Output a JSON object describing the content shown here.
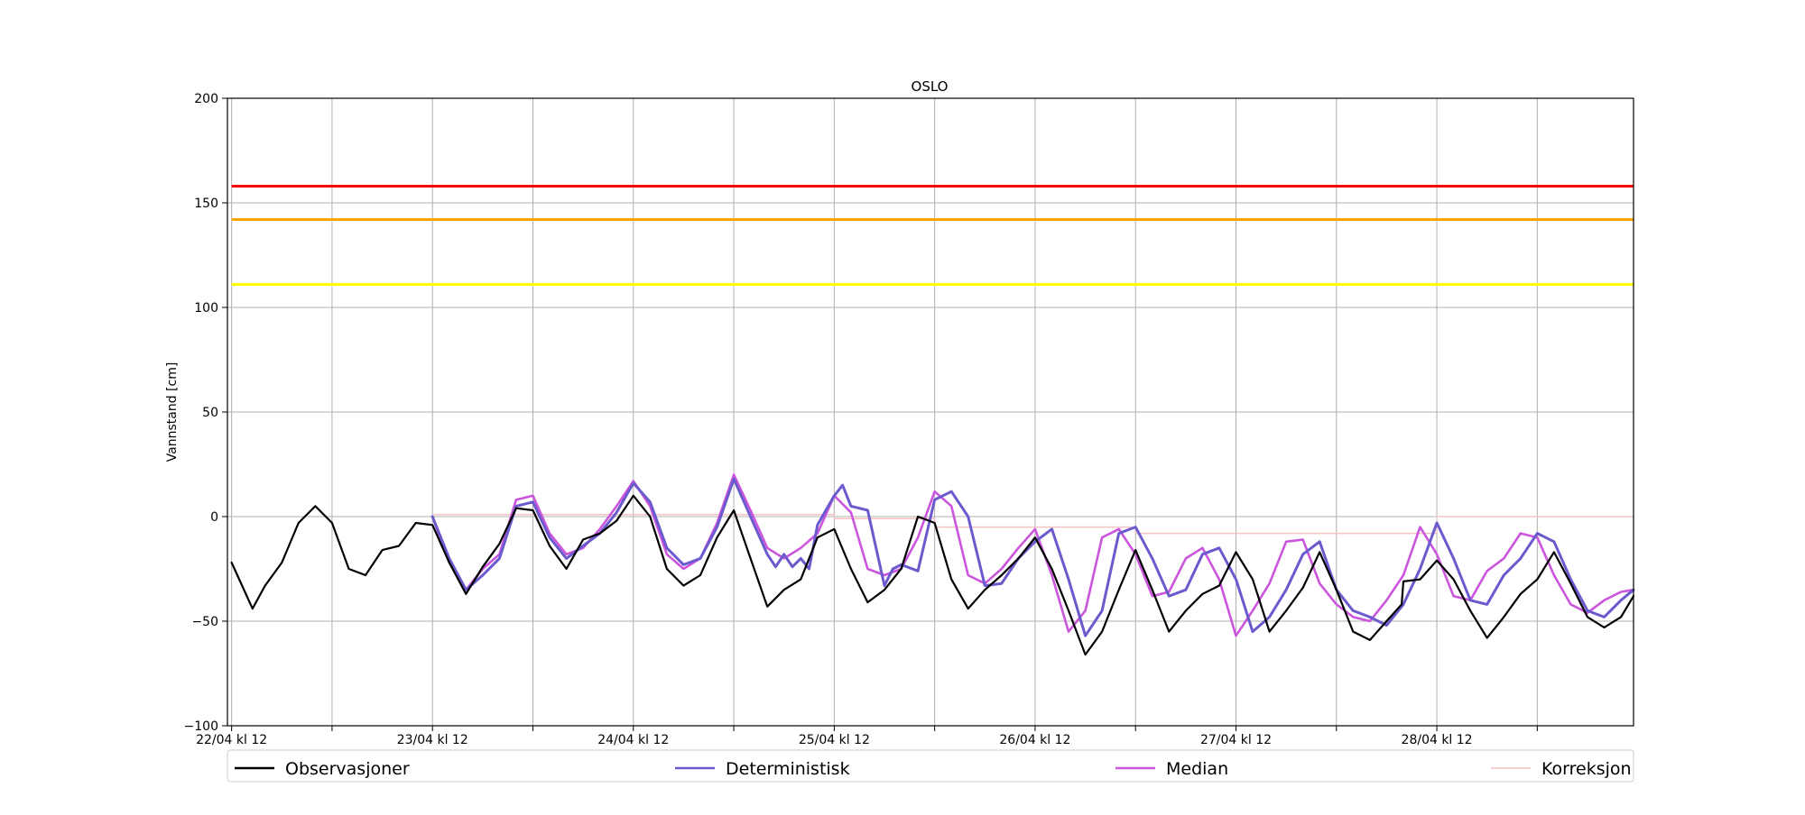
{
  "chart_data": {
    "type": "line",
    "title": "OSLO",
    "xlabel": "",
    "ylabel": "Vannstand [cm]",
    "ylim": [
      -100,
      200
    ],
    "yticks": [
      -100,
      -50,
      0,
      50,
      100,
      150,
      200
    ],
    "x_unit": "hours since 22/04 kl 12",
    "xlim": [
      -0.5,
      167.5
    ],
    "xticks": [
      0,
      12,
      24,
      36,
      48,
      60,
      72,
      84,
      96,
      108,
      120,
      132,
      144,
      156
    ],
    "xtick_labels": [
      "22/04 kl 12",
      "",
      "23/04 kl 12",
      "",
      "24/04 kl 12",
      "",
      "25/04 kl 12",
      "",
      "26/04 kl 12",
      "",
      "27/04 kl 12",
      "",
      "28/04 kl 12",
      ""
    ],
    "grid": true,
    "legend_position": "below plot, spanning full width",
    "thresholds": [
      {
        "value": 158,
        "color": "#ff0000"
      },
      {
        "value": 142,
        "color": "#ffa500"
      },
      {
        "value": 111,
        "color": "#ffff00"
      }
    ],
    "series": [
      {
        "name": "Observasjoner",
        "color": "#000000",
        "x": [
          0,
          2.5,
          4,
          6,
          8,
          10,
          12,
          14,
          16,
          18,
          20,
          22,
          24,
          26,
          28,
          30,
          32,
          34,
          36,
          38,
          40,
          42,
          44,
          46,
          48,
          50,
          52,
          54,
          56,
          58,
          60,
          62,
          64,
          66,
          68,
          70,
          72,
          74,
          76,
          78,
          80,
          82,
          84,
          86,
          88,
          90,
          92,
          94,
          96,
          98,
          100,
          102,
          104,
          106,
          108,
          110,
          112,
          114,
          116,
          118,
          120,
          122,
          124,
          126,
          128,
          130,
          132,
          134,
          136,
          138,
          139.8,
          140,
          142,
          144,
          146,
          148,
          150,
          152,
          154,
          156,
          158,
          160,
          162,
          164,
          166,
          167.5
        ],
        "y": [
          -22,
          -44,
          -33,
          -22,
          -3,
          5,
          -3,
          -25,
          -28,
          -16,
          -14,
          -3,
          -4,
          -22,
          -37,
          -24,
          -13,
          4,
          3,
          -14,
          -25,
          -11,
          -8,
          -2,
          10,
          0,
          -25,
          -33,
          -28,
          -10,
          3,
          -20,
          -43,
          -35,
          -30,
          -10,
          -6,
          -25,
          -41,
          -35,
          -25,
          0,
          -3,
          -30,
          -44,
          -35,
          -28,
          -20,
          -10,
          -25,
          -45,
          -66,
          -55,
          -35,
          -16,
          -35,
          -55,
          -45,
          -37,
          -33,
          -17,
          -30,
          -55,
          -45,
          -34,
          -17,
          -35,
          -55,
          -59,
          -50,
          -42,
          -31,
          -30,
          -21,
          -30,
          -45,
          -58,
          -48,
          -37,
          -30,
          -17,
          -32,
          -48,
          -53,
          -48,
          -38
        ]
      },
      {
        "name": "Deterministisk",
        "color": "#6a5acd",
        "x": [
          24,
          26,
          28,
          30,
          32,
          34,
          36,
          38,
          40,
          42,
          44,
          46,
          48,
          50,
          52,
          54,
          56,
          58,
          60,
          62,
          64,
          65,
          66,
          67,
          68,
          69,
          70,
          72,
          73,
          74,
          76,
          78,
          79,
          80,
          82,
          84,
          86,
          88,
          90,
          92,
          94,
          96,
          98,
          100,
          102,
          104,
          106,
          108,
          110,
          112,
          114,
          116,
          118,
          120,
          122,
          124,
          126,
          128,
          130,
          132,
          134,
          136,
          138,
          140,
          142,
          144,
          146,
          148,
          150,
          152,
          154,
          156,
          158,
          160,
          162,
          164,
          166,
          167.5
        ],
        "y": [
          0,
          -20,
          -35,
          -28,
          -20,
          5,
          7,
          -10,
          -20,
          -14,
          -8,
          2,
          16,
          7,
          -15,
          -23,
          -20,
          -5,
          18,
          0,
          -18,
          -24,
          -18,
          -24,
          -20,
          -25,
          -4,
          10,
          15,
          5,
          3,
          -33,
          -25,
          -23,
          -26,
          8,
          12,
          0,
          -33,
          -32,
          -20,
          -12,
          -6,
          -30,
          -57,
          -45,
          -8,
          -5,
          -20,
          -38,
          -35,
          -18,
          -15,
          -30,
          -55,
          -48,
          -35,
          -18,
          -12,
          -35,
          -45,
          -48,
          -52,
          -42,
          -25,
          -3,
          -20,
          -40,
          -42,
          -28,
          -20,
          -8,
          -12,
          -30,
          -45,
          -48,
          -40,
          -35
        ]
      },
      {
        "name": "Median",
        "color": "#cc55dd",
        "x": [
          24,
          26,
          28,
          30,
          32,
          34,
          36,
          38,
          40,
          42,
          44,
          46,
          48,
          50,
          52,
          54,
          56,
          58,
          60,
          62,
          64,
          66,
          68,
          70,
          72,
          74,
          76,
          78,
          80,
          82,
          84,
          86,
          88,
          90,
          92,
          94,
          96,
          98,
          100,
          102,
          104,
          106,
          108,
          110,
          112,
          114,
          116,
          118,
          120,
          122,
          124,
          126,
          128,
          130,
          132,
          134,
          136,
          138,
          140,
          142,
          144,
          146,
          148,
          150,
          152,
          154,
          156,
          158,
          160,
          162,
          164,
          166,
          167.5
        ],
        "y": [
          0,
          -22,
          -35,
          -25,
          -18,
          8,
          10,
          -8,
          -18,
          -15,
          -6,
          5,
          17,
          5,
          -18,
          -25,
          -20,
          -3,
          20,
          3,
          -15,
          -20,
          -15,
          -8,
          10,
          2,
          -25,
          -28,
          -25,
          -10,
          12,
          5,
          -28,
          -32,
          -25,
          -15,
          -6,
          -28,
          -55,
          -45,
          -10,
          -6,
          -18,
          -38,
          -36,
          -20,
          -15,
          -30,
          -57,
          -45,
          -32,
          -12,
          -11,
          -32,
          -42,
          -48,
          -50,
          -40,
          -28,
          -5,
          -18,
          -38,
          -40,
          -26,
          -20,
          -8,
          -10,
          -28,
          -42,
          -46,
          -40,
          -36,
          -35
        ]
      },
      {
        "name": "Korreksjon",
        "color": "#f4c2c2",
        "x": [
          24,
          48,
          48,
          72,
          72,
          84,
          84,
          96,
          96,
          108,
          108,
          120,
          120,
          144,
          144,
          167.5
        ],
        "y": [
          1,
          1,
          1,
          1,
          -1,
          -1,
          -5,
          -5,
          -5,
          -5,
          -8,
          -8,
          -8,
          -8,
          0,
          0
        ]
      }
    ]
  }
}
